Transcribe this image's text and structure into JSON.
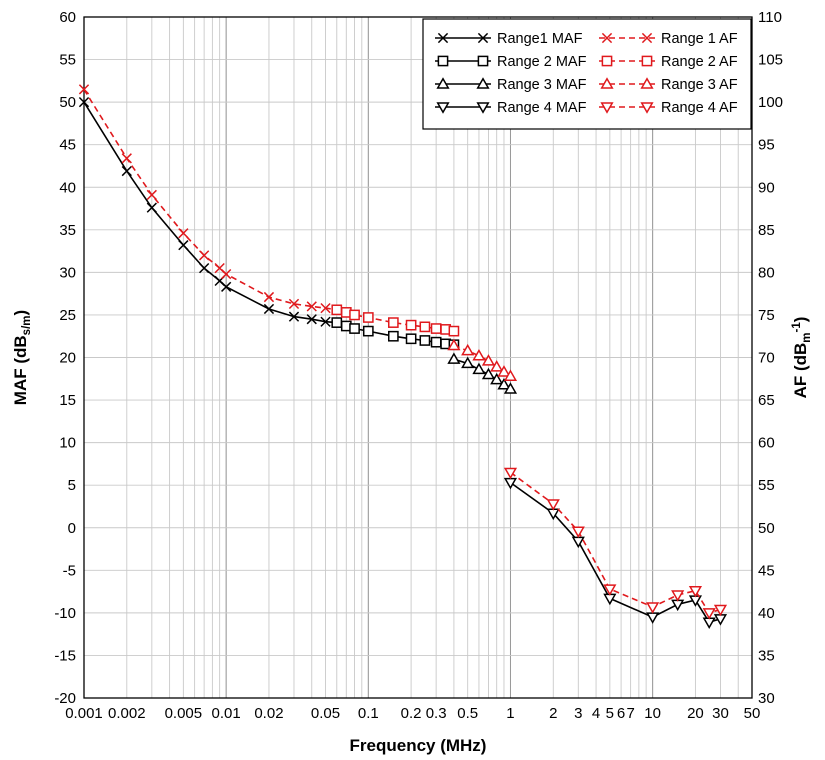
{
  "chart_data": {
    "type": "line",
    "x_scale": "log",
    "xlabel": "Frequency (MHz)",
    "ylabel_left": {
      "main": "MAF (dB",
      "sub": "s/m",
      "close": ")"
    },
    "ylabel_right": {
      "main": "AF (dB",
      "sub": "m",
      "sup": "-1",
      "close": ")"
    },
    "xlim": [
      0.001,
      50
    ],
    "ylim_left": [
      -20,
      60
    ],
    "ylim_right": [
      30,
      110
    ],
    "x_ticks": [
      {
        "v": 0.001,
        "label": "0.001"
      },
      {
        "v": 0.002,
        "label": "0.002"
      },
      {
        "v": 0.005,
        "label": "0.005"
      },
      {
        "v": 0.01,
        "label": "0.01"
      },
      {
        "v": 0.02,
        "label": "0.02"
      },
      {
        "v": 0.05,
        "label": "0.05"
      },
      {
        "v": 0.1,
        "label": "0.1"
      },
      {
        "v": 0.2,
        "label": "0.2"
      },
      {
        "v": 0.3,
        "label": "0.3"
      },
      {
        "v": 0.5,
        "label": "0.5"
      },
      {
        "v": 1,
        "label": "1"
      },
      {
        "v": 2,
        "label": "2"
      },
      {
        "v": 3,
        "label": "3"
      },
      {
        "v": 4,
        "label": "4"
      },
      {
        "v": 5,
        "label": "5"
      },
      {
        "v": 6,
        "label": "6"
      },
      {
        "v": 7,
        "label": "7"
      },
      {
        "v": 10,
        "label": "10"
      },
      {
        "v": 20,
        "label": "20"
      },
      {
        "v": 30,
        "label": "30"
      },
      {
        "v": 50,
        "label": "50"
      }
    ],
    "y_ticks_left": [
      60,
      55,
      50,
      45,
      40,
      35,
      30,
      25,
      20,
      15,
      10,
      5,
      0,
      -5,
      -10,
      -15,
      -20
    ],
    "y_ticks_right": [
      110,
      105,
      100,
      95,
      90,
      85,
      80,
      75,
      70,
      65,
      60,
      55,
      50,
      45,
      40,
      35,
      30
    ],
    "grid": true,
    "legend_position": "top-right",
    "colors": {
      "maf": "#000000",
      "af": "#e0191d"
    },
    "series": [
      {
        "name": "Range1 MAF",
        "group": "maf",
        "marker": "x",
        "axis": "left",
        "x": [
          0.001,
          0.002,
          0.003,
          0.005,
          0.007,
          0.009,
          0.01,
          0.02,
          0.03,
          0.04,
          0.05,
          0.06
        ],
        "y": [
          50.0,
          41.9,
          37.6,
          33.2,
          30.5,
          29.0,
          28.3,
          25.7,
          24.8,
          24.5,
          24.2,
          24.1
        ]
      },
      {
        "name": "Range 2 MAF",
        "group": "maf",
        "marker": "square",
        "axis": "left",
        "x": [
          0.06,
          0.07,
          0.08,
          0.1,
          0.15,
          0.2,
          0.25,
          0.3,
          0.35,
          0.4
        ],
        "y": [
          24.1,
          23.7,
          23.4,
          23.1,
          22.5,
          22.2,
          22.0,
          21.8,
          21.6,
          21.5
        ]
      },
      {
        "name": "Range 3 MAF",
        "group": "maf",
        "marker": "triangle-up",
        "axis": "left",
        "x": [
          0.4,
          0.5,
          0.6,
          0.7,
          0.8,
          0.9,
          1.0
        ],
        "y": [
          19.8,
          19.3,
          18.6,
          18.0,
          17.4,
          16.8,
          16.3
        ]
      },
      {
        "name": "Range 4 MAF",
        "group": "maf",
        "marker": "triangle-down",
        "axis": "left",
        "x": [
          1,
          2,
          3,
          5,
          10,
          15,
          20,
          25,
          30
        ],
        "y": [
          5.3,
          1.7,
          -1.6,
          -8.3,
          -10.5,
          -9.0,
          -8.5,
          -11.1,
          -10.7
        ]
      },
      {
        "name": "Range 1 AF",
        "group": "af",
        "marker": "x",
        "axis": "right",
        "x": [
          0.001,
          0.002,
          0.003,
          0.005,
          0.007,
          0.009,
          0.01,
          0.02,
          0.03,
          0.04,
          0.05,
          0.06
        ],
        "y": [
          101.5,
          93.4,
          89.1,
          84.6,
          82.0,
          80.5,
          79.8,
          77.1,
          76.3,
          76.0,
          75.8,
          75.6
        ]
      },
      {
        "name": "Range 2 AF",
        "group": "af",
        "marker": "square",
        "axis": "right",
        "x": [
          0.06,
          0.07,
          0.08,
          0.1,
          0.15,
          0.2,
          0.25,
          0.3,
          0.35,
          0.4
        ],
        "y": [
          75.6,
          75.3,
          75.0,
          74.7,
          74.1,
          73.8,
          73.6,
          73.4,
          73.3,
          73.1
        ]
      },
      {
        "name": "Range 3 AF",
        "group": "af",
        "marker": "triangle-up",
        "axis": "right",
        "x": [
          0.4,
          0.5,
          0.6,
          0.7,
          0.8,
          0.9,
          1.0
        ],
        "y": [
          71.4,
          70.8,
          70.2,
          69.6,
          68.9,
          68.3,
          67.8
        ]
      },
      {
        "name": "Range 4 AF",
        "group": "af",
        "marker": "triangle-down",
        "axis": "right",
        "x": [
          1,
          2,
          3,
          5,
          10,
          15,
          20,
          25,
          30
        ],
        "y": [
          56.5,
          52.8,
          49.6,
          42.8,
          40.7,
          42.1,
          42.6,
          40.0,
          40.4
        ]
      }
    ]
  }
}
